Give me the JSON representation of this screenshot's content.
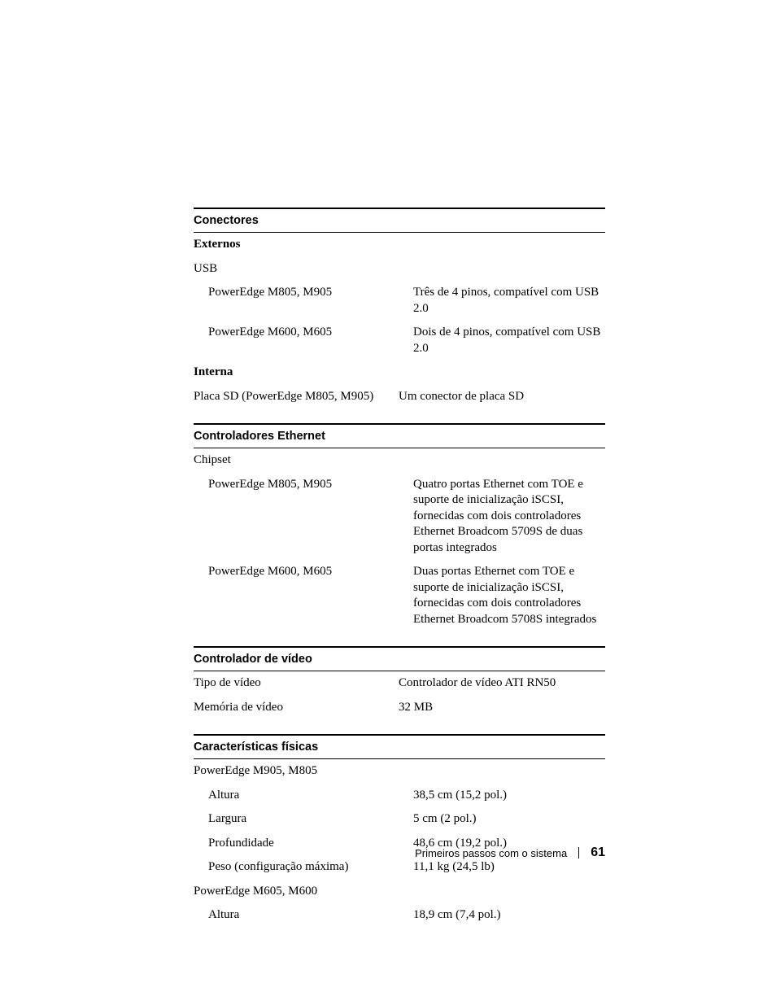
{
  "sections": {
    "conectores": {
      "header": "Conectores",
      "externos_label": "Externos",
      "usb_label": "USB",
      "usb_m805_label": "PowerEdge M805, M905",
      "usb_m805_value": "Três de 4 pinos, compatível com USB 2.0",
      "usb_m600_label": "PowerEdge M600, M605",
      "usb_m600_value": "Dois de 4 pinos, compatível com USB 2.0",
      "interna_label": "Interna",
      "sd_label": "Placa SD (PowerEdge M805, M905)",
      "sd_value": "Um conector de placa SD"
    },
    "ethernet": {
      "header": "Controladores Ethernet",
      "chipset_label": "Chipset",
      "m805_label": "PowerEdge M805, M905",
      "m805_value": "Quatro portas Ethernet com TOE e suporte de inicialização iSCSI, fornecidas com dois controladores Ethernet Broadcom 5709S de duas portas integrados",
      "m600_label": "PowerEdge M600, M605",
      "m600_value": "Duas portas Ethernet com TOE e suporte de inicialização iSCSI, fornecidas com dois controladores Ethernet Broadcom 5708S integrados"
    },
    "video": {
      "header": "Controlador de vídeo",
      "tipo_label": "Tipo de vídeo",
      "tipo_value": "Controlador de vídeo ATI RN50",
      "mem_label": "Memória de vídeo",
      "mem_value": "32 MB"
    },
    "fisicas": {
      "header": "Características físicas",
      "m905_label": "PowerEdge M905, M805",
      "m905_altura_label": "Altura",
      "m905_altura_value": "38,5 cm (15,2 pol.)",
      "m905_largura_label": "Largura",
      "m905_largura_value": "5 cm (2 pol.)",
      "m905_prof_label": "Profundidade",
      "m905_prof_value": "48,6 cm (19,2 pol.)",
      "m905_peso_label": "Peso (configuração máxima)",
      "m905_peso_value": "11,1 kg (24,5 lb)",
      "m605_label": "PowerEdge M605, M600",
      "m605_altura_label": "Altura",
      "m605_altura_value": "18,9 cm (7,4 pol.)"
    }
  },
  "footer": {
    "text": "Primeiros passos com o sistema",
    "page_number": "61"
  }
}
